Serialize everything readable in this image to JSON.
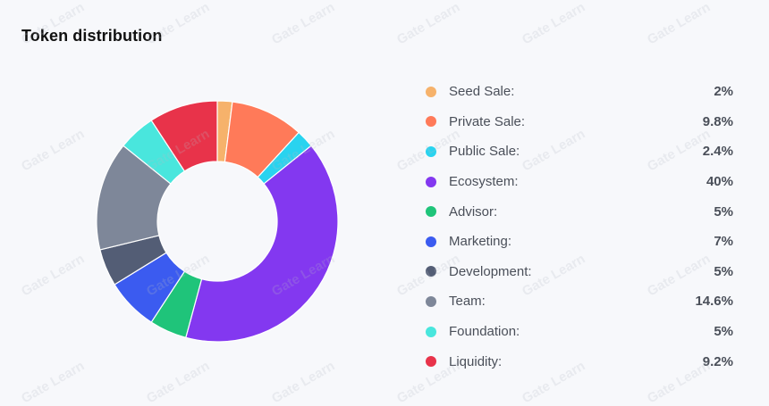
{
  "title": "Token distribution",
  "watermark": "Gate Learn",
  "chart_data": {
    "type": "pie",
    "title": "Token distribution",
    "labels": [
      "Seed Sale:",
      "Private Sale:",
      "Public Sale:",
      "Ecosystem:",
      "Advisor:",
      "Marketing:",
      "Development:",
      "Team:",
      "Foundation:",
      "Liquidity:"
    ],
    "values": [
      2,
      9.8,
      2.4,
      40,
      5,
      7,
      5,
      14.6,
      5,
      9.2
    ],
    "display_values": [
      "2%",
      "9.8%",
      "2.4%",
      "40%",
      "5%",
      "7%",
      "5%",
      "14.6%",
      "5%",
      "9.2%"
    ],
    "colors": [
      "#f6b26b",
      "#ff7a59",
      "#29d3ef",
      "#8338f0",
      "#1fc47a",
      "#3b5bf0",
      "#535d75",
      "#7e8799",
      "#49e6dd",
      "#e8334a"
    ],
    "legend_position": "right"
  }
}
